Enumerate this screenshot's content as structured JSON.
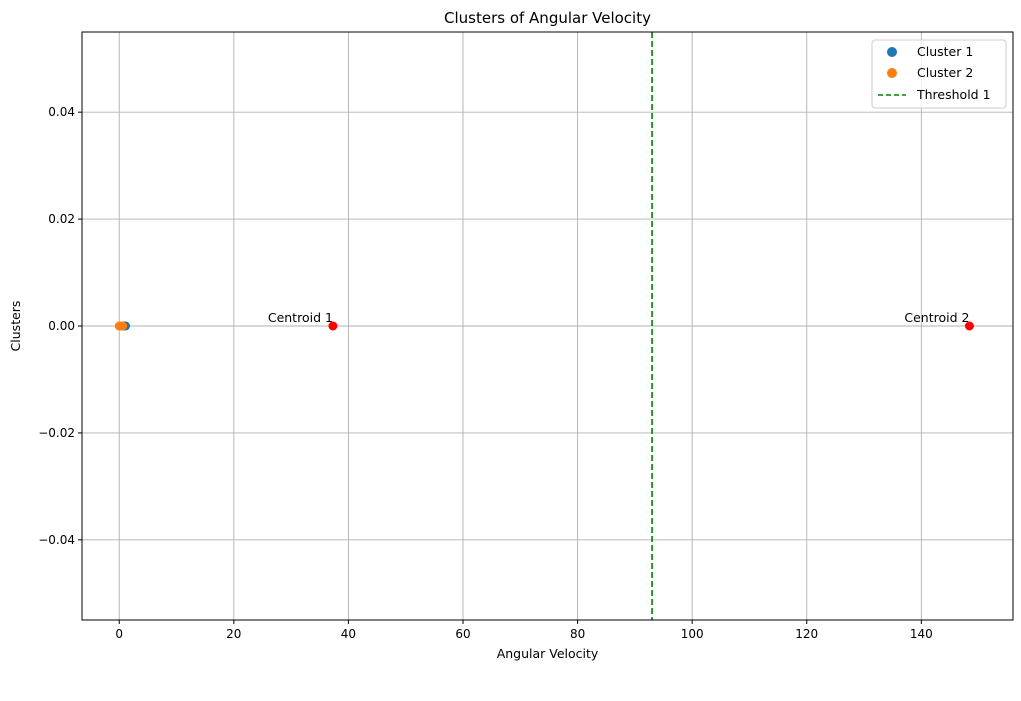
{
  "chart_data": {
    "type": "scatter",
    "title": "Clusters of Angular Velocity",
    "xlabel": "Angular Velocity",
    "ylabel": "Clusters",
    "xlim": [
      -6.5,
      156.0
    ],
    "ylim": [
      -0.055,
      0.055
    ],
    "x_ticks": [
      0,
      20,
      40,
      60,
      80,
      100,
      120,
      140
    ],
    "x_tick_labels": [
      "0",
      "20",
      "40",
      "60",
      "80",
      "100",
      "120",
      "140"
    ],
    "y_ticks": [
      -0.04,
      -0.02,
      0.0,
      0.02,
      0.04
    ],
    "y_tick_labels": [
      "−0.04",
      "−0.02",
      "0.00",
      "0.02",
      "0.04"
    ],
    "grid": true,
    "legend_position": "top-right",
    "series": [
      {
        "name": "Cluster 1",
        "color": "#1f77b4",
        "marker": "circle",
        "points": [
          {
            "x": 0.3,
            "y": 0
          },
          {
            "x": 0.5,
            "y": 0
          },
          {
            "x": 0.7,
            "y": 0
          },
          {
            "x": 0.9,
            "y": 0
          },
          {
            "x": 1.1,
            "y": 0
          }
        ]
      },
      {
        "name": "Cluster 2",
        "color": "#ff7f0e",
        "marker": "circle",
        "points": [
          {
            "x": 0.0,
            "y": 0
          },
          {
            "x": 0.15,
            "y": 0
          },
          {
            "x": 0.3,
            "y": 0
          },
          {
            "x": 0.45,
            "y": 0
          },
          {
            "x": 0.6,
            "y": 0
          }
        ]
      }
    ],
    "centroids": [
      {
        "label": "Centroid 1",
        "x": 37.3,
        "y": 0,
        "color": "#ff0000"
      },
      {
        "label": "Centroid 2",
        "x": 148.4,
        "y": 0,
        "color": "#ff0000"
      }
    ],
    "thresholds": [
      {
        "name": "Threshold 1",
        "x": 93.0,
        "color": "#008000",
        "style": "dashed"
      }
    ],
    "colors": {
      "grid": "#b0b0b0",
      "axes": "#000000",
      "legend_border": "#cccccc"
    }
  }
}
